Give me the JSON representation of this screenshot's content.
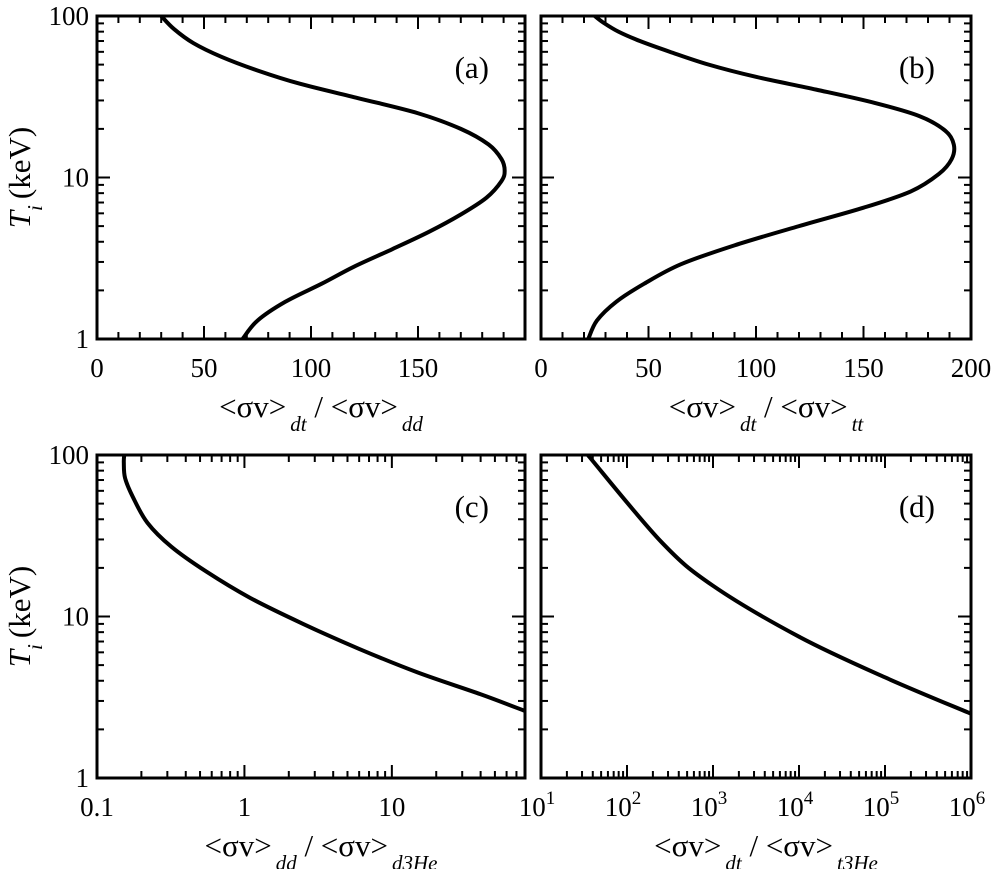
{
  "chart_data": [
    {
      "id": "a",
      "type": "line",
      "panel_label": "(a)",
      "x_scale": "linear",
      "y_scale": "log",
      "xlim": [
        0,
        200
      ],
      "ylim": [
        1,
        100
      ],
      "x_ticks": [
        0,
        50,
        100,
        150
      ],
      "x_tick_labels": [
        "0",
        "50",
        "100",
        "150"
      ],
      "y_ticks": [
        1,
        10,
        100
      ],
      "y_tick_labels": [
        "1",
        "10",
        "100"
      ],
      "xlabel": {
        "main": "<σv>",
        "sub1": "dt",
        "sep": " / <σv>",
        "sub2": "dd"
      },
      "ylabel": {
        "main": "T",
        "sub": "i",
        "unit": "(keV)"
      },
      "x": [
        68,
        75,
        88,
        105,
        120,
        138,
        155,
        170,
        182,
        189,
        190.5,
        189,
        183,
        170,
        150,
        122,
        95,
        75,
        58,
        45,
        36,
        30
      ],
      "y": [
        1,
        1.3,
        1.7,
        2.2,
        2.8,
        3.6,
        4.6,
        5.9,
        7.5,
        9.5,
        11,
        13,
        16,
        20,
        25,
        31,
        38,
        46,
        56,
        68,
        83,
        100
      ]
    },
    {
      "id": "b",
      "type": "line",
      "panel_label": "(b)",
      "x_scale": "linear",
      "y_scale": "log",
      "xlim": [
        0,
        200
      ],
      "ylim": [
        1,
        100
      ],
      "x_ticks": [
        0,
        50,
        100,
        150,
        200
      ],
      "x_tick_labels": [
        "0",
        "50",
        "100",
        "150",
        "200"
      ],
      "y_ticks": [
        1,
        10,
        100
      ],
      "y_tick_labels": [
        "",
        "",
        ""
      ],
      "xlabel": {
        "main": "<σv>",
        "sub1": "dt",
        "sep": " / <σv>",
        "sub2": "tt"
      },
      "ylabel": null,
      "x": [
        22,
        26,
        35,
        48,
        65,
        90,
        120,
        150,
        172,
        185,
        191,
        192,
        188,
        176,
        155,
        128,
        100,
        78,
        60,
        46,
        36,
        29,
        25
      ],
      "y": [
        1,
        1.3,
        1.7,
        2.2,
        2.9,
        3.8,
        5,
        6.5,
        8.2,
        10.5,
        13,
        16,
        19.5,
        24,
        29,
        35,
        42,
        50,
        60,
        70,
        80,
        91,
        100
      ]
    },
    {
      "id": "c",
      "type": "line",
      "panel_label": "(c)",
      "x_scale": "log",
      "y_scale": "log",
      "xlim": [
        0.1,
        80
      ],
      "ylim": [
        1,
        100
      ],
      "x_ticks": [
        0.1,
        1,
        10
      ],
      "x_tick_labels": [
        "0.1",
        "1",
        "10"
      ],
      "y_ticks": [
        1,
        10,
        100
      ],
      "y_tick_labels": [
        "1",
        "10",
        "100"
      ],
      "xlabel": {
        "main": "<σv>",
        "sub1": "dd",
        "sep": " / <σv>",
        "sub2": "d3He"
      },
      "ylabel": {
        "main": "T",
        "sub": "i",
        "unit": "(keV)"
      },
      "x": [
        80,
        40,
        15,
        6,
        2.5,
        1.1,
        0.55,
        0.32,
        0.22,
        0.175,
        0.155,
        0.152,
        0.153
      ],
      "y": [
        2.6,
        3.3,
        4.5,
        6.3,
        9,
        13,
        19,
        27,
        38,
        55,
        72,
        90,
        100
      ]
    },
    {
      "id": "d",
      "type": "line",
      "panel_label": "(d)",
      "x_scale": "log",
      "y_scale": "log",
      "xlim": [
        10,
        1000000
      ],
      "ylim": [
        1,
        100
      ],
      "x_ticks": [
        10,
        100,
        1000,
        10000,
        100000,
        1000000
      ],
      "x_tick_labels": [
        {
          "base": "10",
          "exp": "1"
        },
        {
          "base": "10",
          "exp": "2"
        },
        {
          "base": "10",
          "exp": "3"
        },
        {
          "base": "10",
          "exp": "4"
        },
        {
          "base": "10",
          "exp": "5"
        },
        {
          "base": "10",
          "exp": "6"
        }
      ],
      "y_ticks": [
        1,
        10,
        100
      ],
      "y_tick_labels": [
        "",
        "",
        ""
      ],
      "xlabel": {
        "main": "<σv>",
        "sub1": "dt",
        "sep": " / <σv>",
        "sub2": "t3He"
      },
      "ylabel": null,
      "x": [
        1000000,
        100000,
        10000,
        1000,
        250,
        35
      ],
      "y": [
        2.5,
        4.2,
        7.5,
        15.5,
        29,
        100
      ]
    }
  ]
}
